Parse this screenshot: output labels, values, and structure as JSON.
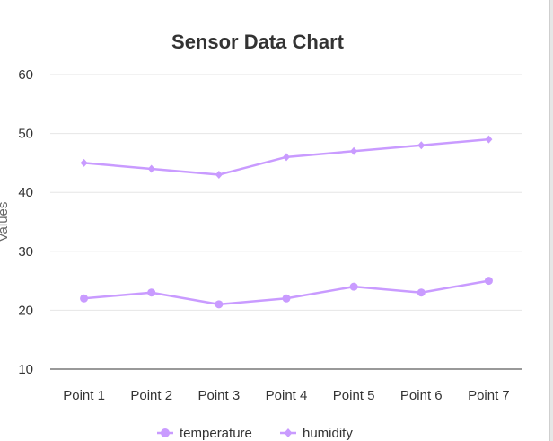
{
  "chart_data": {
    "type": "line",
    "title": "Sensor Data Chart",
    "ylabel": "Values",
    "xlabel": "",
    "categories": [
      "Point 1",
      "Point 2",
      "Point 3",
      "Point 4",
      "Point 5",
      "Point 6",
      "Point 7"
    ],
    "series": [
      {
        "name": "temperature",
        "values": [
          22,
          23,
          21,
          22,
          24,
          23,
          25
        ],
        "color": "#c99bff",
        "marker": "circle"
      },
      {
        "name": "humidity",
        "values": [
          45,
          44,
          43,
          46,
          47,
          48,
          49
        ],
        "color": "#c99bff",
        "marker": "diamond"
      }
    ],
    "ylim": [
      10,
      60
    ],
    "yticks": [
      10,
      20,
      30,
      40,
      50,
      60
    ],
    "grid": true,
    "legend_position": "bottom"
  }
}
